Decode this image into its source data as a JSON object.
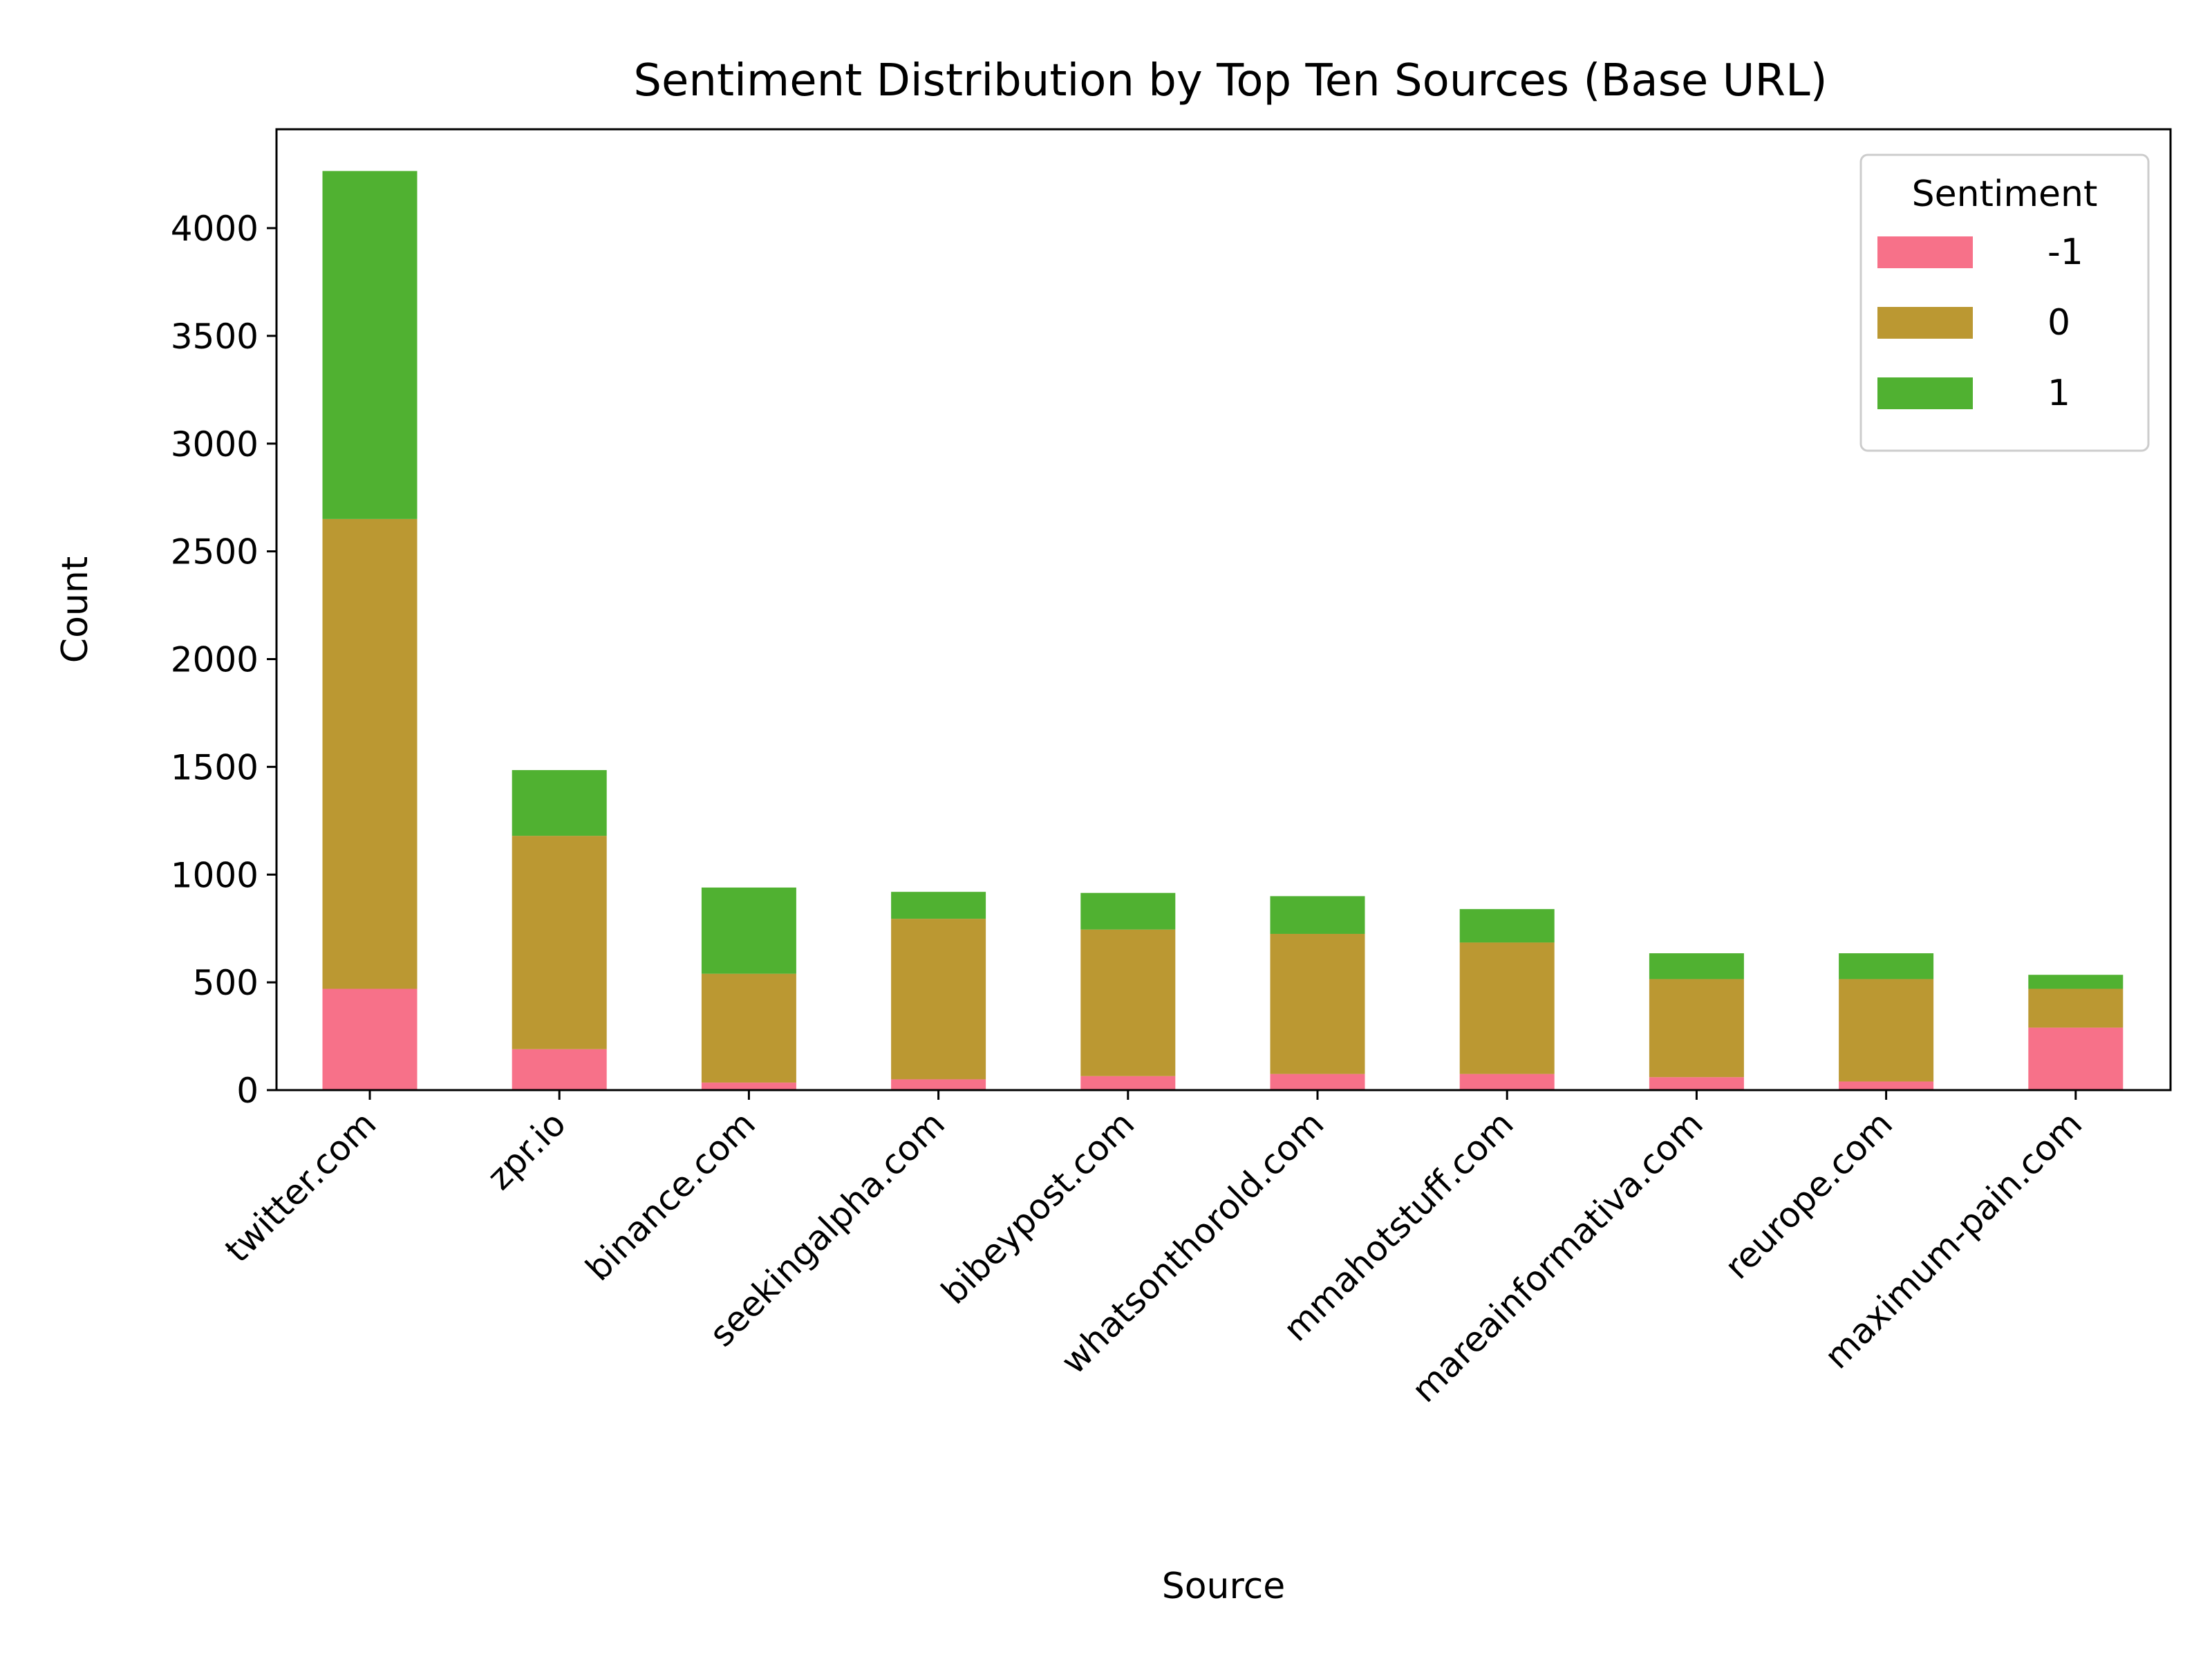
{
  "chart_data": {
    "type": "bar",
    "stacked": true,
    "title": "Sentiment Distribution by Top Ten Sources (Base URL)",
    "xlabel": "Source",
    "ylabel": "Count",
    "ylim": [
      0,
      4500
    ],
    "yticks": [
      0,
      500,
      1000,
      1500,
      2000,
      2500,
      3000,
      3500,
      4000
    ],
    "categories": [
      "twitter.com",
      "zpr.io",
      "binance.com",
      "seekingalpha.com",
      "bibeypost.com",
      "whatsonthorold.com",
      "mmahotstuff.com",
      "mareainformativa.com",
      "reurope.com",
      "maximum-pain.com"
    ],
    "series": [
      {
        "name": "-1",
        "color": "#f77189",
        "values": [
          470,
          190,
          35,
          50,
          65,
          75,
          75,
          60,
          40,
          290
        ]
      },
      {
        "name": "0",
        "color": "#bb9832",
        "values": [
          2180,
          990,
          505,
          745,
          680,
          650,
          610,
          455,
          475,
          180
        ]
      },
      {
        "name": "1",
        "color": "#50b131",
        "values": [
          1615,
          305,
          400,
          125,
          170,
          175,
          155,
          120,
          120,
          65
        ]
      }
    ],
    "legend": {
      "title": "Sentiment",
      "position": "top-right"
    },
    "grid": false
  }
}
